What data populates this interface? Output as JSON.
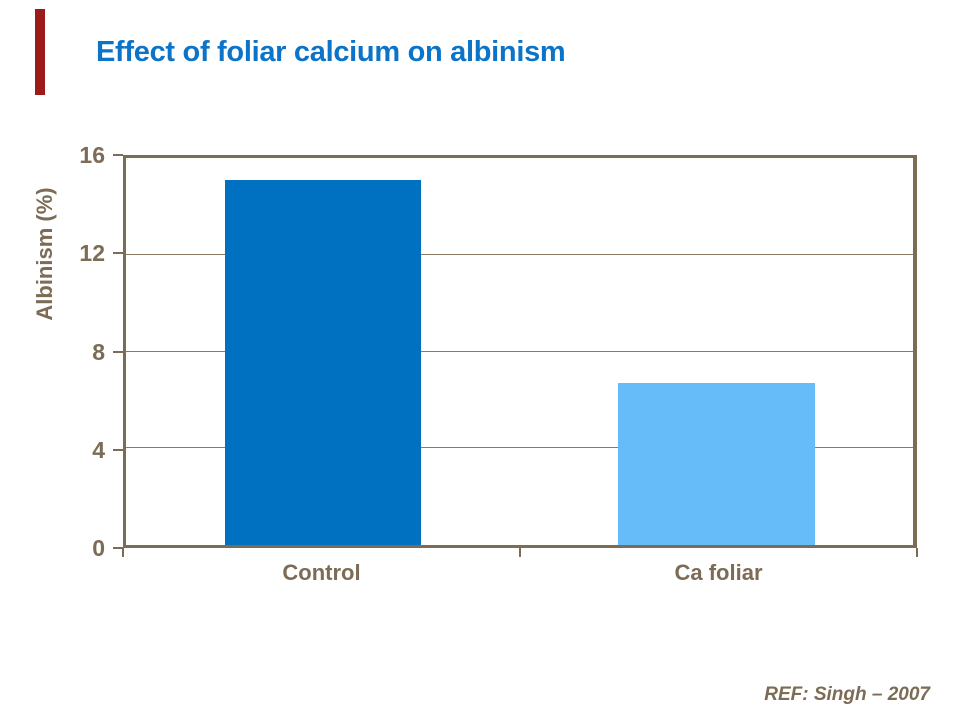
{
  "slide": {
    "title": "Effect of foliar calcium on albinism",
    "title_color": "#0C74C8",
    "accent_bar_color": "#9C1A1A",
    "footer_ref": "REF: Singh – 2007",
    "footer_color": "#7C6B55"
  },
  "chart_data": {
    "type": "bar",
    "title": "Effect of foliar calcium on albinism",
    "categories": [
      "Control",
      "Ca foliar"
    ],
    "values": [
      15.1,
      6.7
    ],
    "bar_colors": [
      "#0070C0",
      "#66BCF9"
    ],
    "xlabel": "",
    "ylabel": "Albinism (%)",
    "ylim": [
      0,
      16
    ],
    "yticks": [
      0,
      4,
      8,
      12,
      16
    ],
    "grid": true,
    "legend": false,
    "axis_color": "#7C6B55",
    "gridline_color": "#8A7A63",
    "tick_label_color": "#7C6B55"
  }
}
